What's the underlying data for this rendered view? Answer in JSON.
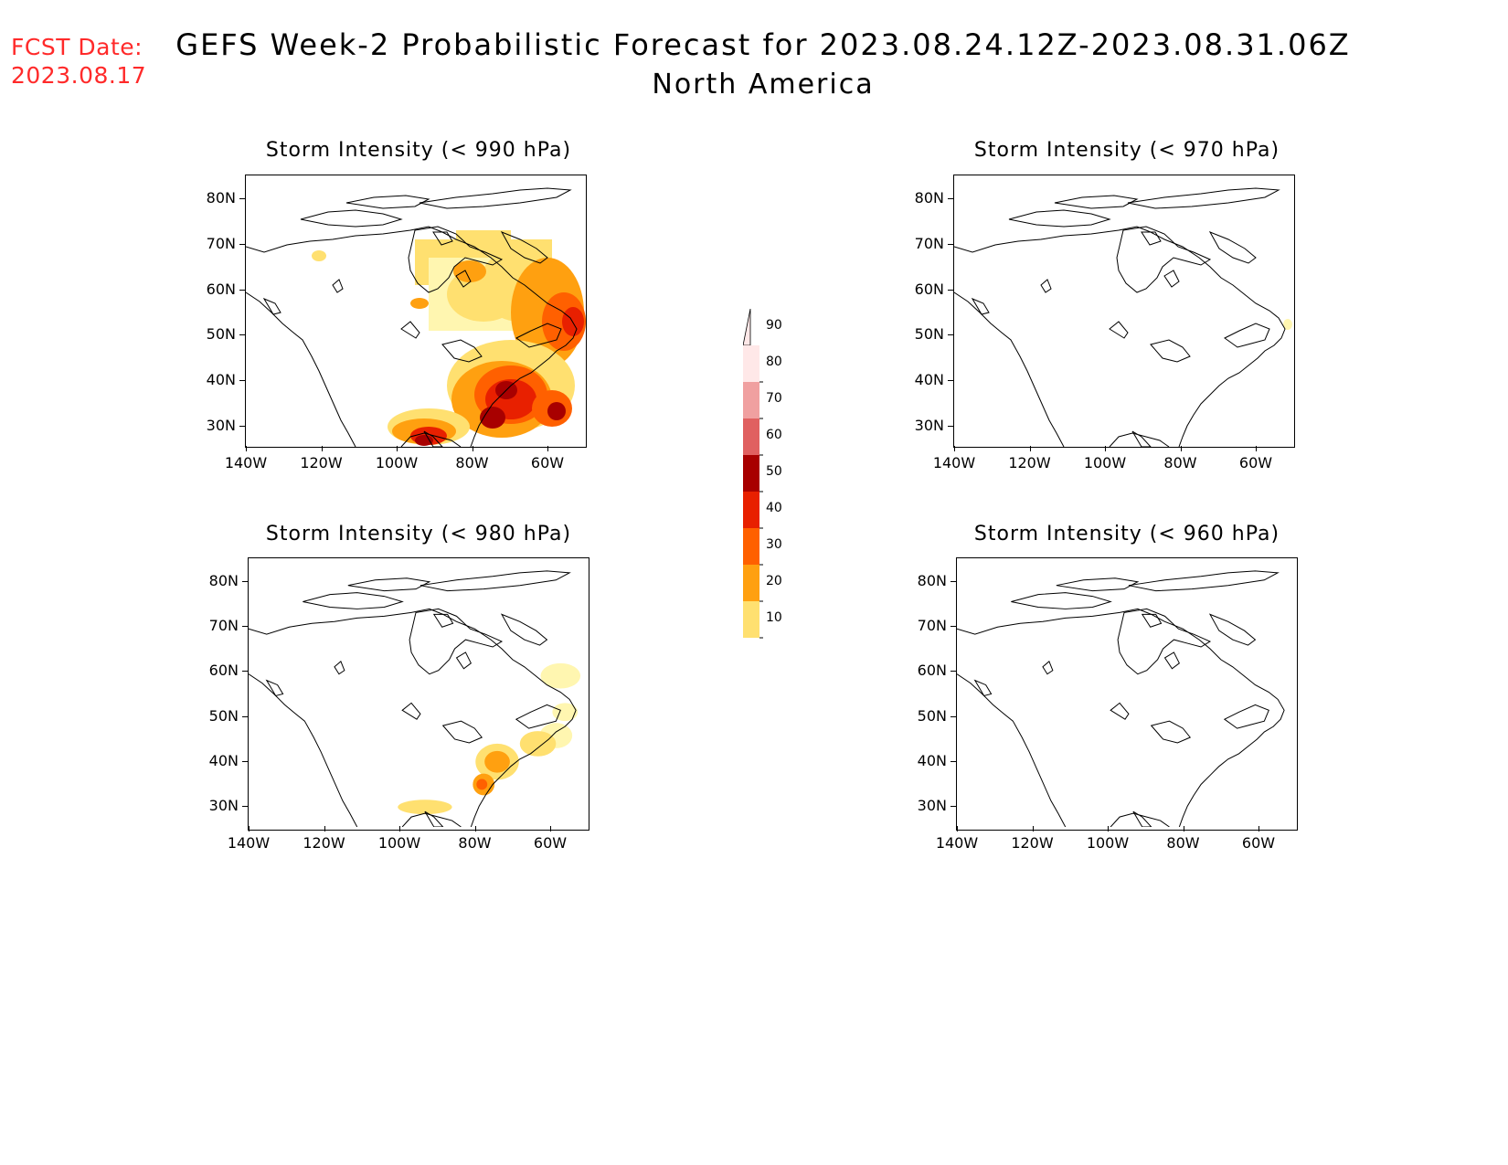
{
  "header": {
    "fcst_label": "FCST Date:",
    "fcst_date": "2023.08.17",
    "title": "GEFS Week-2 Probabilistic Forecast for 2023.08.24.12Z-2023.08.31.06Z",
    "subtitle": "North America"
  },
  "panels": [
    {
      "id": "p990",
      "title": "Storm Intensity (< 990 hPa)"
    },
    {
      "id": "p970",
      "title": "Storm Intensity (< 970 hPa)"
    },
    {
      "id": "p980",
      "title": "Storm Intensity (< 980 hPa)"
    },
    {
      "id": "p960",
      "title": "Storm Intensity (< 960 hPa)"
    }
  ],
  "axes": {
    "lat_labels": [
      "80N",
      "70N",
      "60N",
      "50N",
      "40N",
      "30N"
    ],
    "lon_labels": [
      "140W",
      "120W",
      "100W",
      "80W",
      "60W"
    ]
  },
  "colorbar": {
    "levels": [
      "10",
      "20",
      "30",
      "40",
      "50",
      "60",
      "70",
      "80",
      "90"
    ],
    "colors": [
      "#fff6b0",
      "#ffe070",
      "#ffa010",
      "#ff6000",
      "#e82000",
      "#a80000",
      "#e06060",
      "#f0a0a0",
      "#ffe8e8"
    ]
  }
}
